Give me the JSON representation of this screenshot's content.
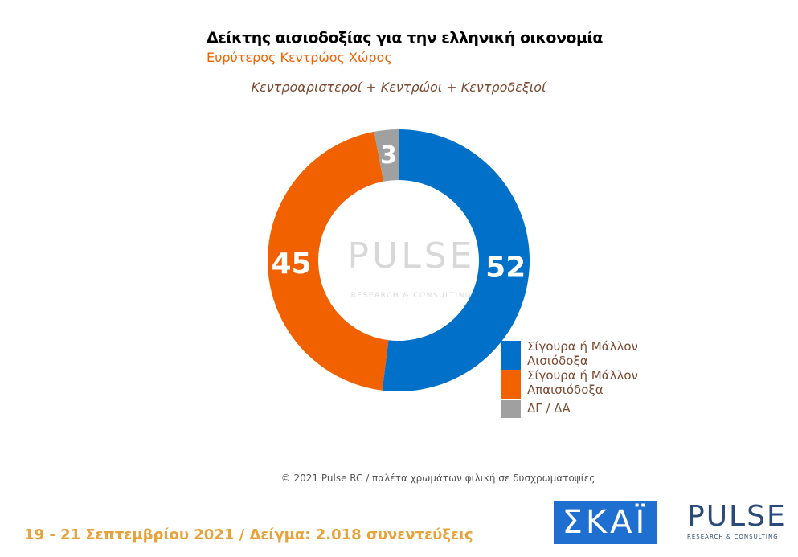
{
  "chart_data": {
    "type": "donut",
    "title": "Δείκτης αισιοδοξίας για την ελληνική οικονομία",
    "subtitle": "Ευρύτερος Κεντρώος Χώρος",
    "note": "Κεντροαριστεροί + Κεντρώοι + Κεντροδεξιοί",
    "categories": [
      "Σίγουρα ή Μάλλον Αισιόδοξα",
      "Σίγουρα ή Μάλλον Απαισιόδοξα",
      "ΔΓ / ΔΑ"
    ],
    "values": [
      52,
      45,
      3
    ],
    "colors": [
      "#0070c8",
      "#f26100",
      "#a0a0a0"
    ]
  },
  "source": "© 2021 Pulse RC  /  παλέτα χρωμάτων φιλική σε δυσχρωματοψίες",
  "footer": "19 - 21 Σεπτεμβρίου 2021  /  Δείγμα:  2.018 συνεντεύξεις",
  "logos": {
    "channel": "ΣΚΑΪ",
    "pulse": "PULSE",
    "pulse_tagline": "RESEARCH & CONSULTING"
  }
}
